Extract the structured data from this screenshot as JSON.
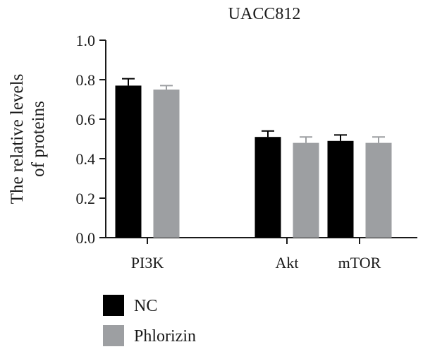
{
  "chart_data": {
    "type": "bar",
    "title": "UACC812",
    "xlabel": "",
    "ylabel": [
      "The relative levels",
      "of proteins"
    ],
    "categories": [
      "PI3K",
      "Akt",
      "mTOR"
    ],
    "ylim": [
      0,
      1.0
    ],
    "yticks": [
      "0.0",
      "0.2",
      "0.4",
      "0.6",
      "0.8",
      "1.0"
    ],
    "series": [
      {
        "name": "NC",
        "color": "#000000",
        "values": [
          0.77,
          0.51,
          0.49
        ],
        "errors": [
          0.035,
          0.03,
          0.03
        ]
      },
      {
        "name": "Phlorizin",
        "color": "#9d9fa2",
        "values": [
          0.75,
          0.48,
          0.48
        ],
        "errors": [
          0.02,
          0.03,
          0.03
        ]
      }
    ],
    "legend_position": "bottom-left",
    "grid": false
  }
}
